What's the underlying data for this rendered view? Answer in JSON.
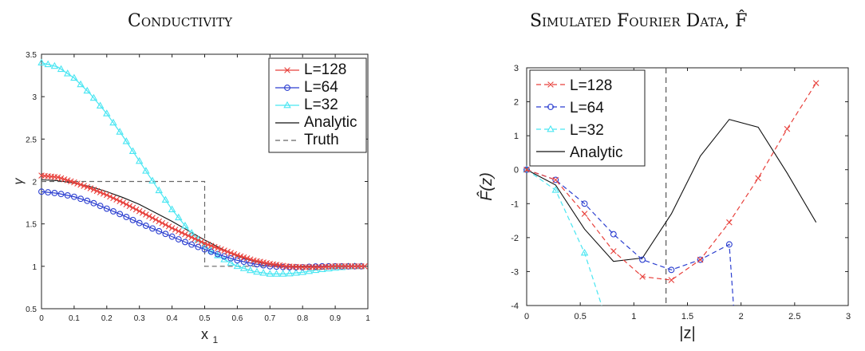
{
  "figure": {
    "left_title": "Conductivity",
    "right_title": "Simulated Fourier Data, F̂"
  },
  "chart_data": [
    {
      "type": "line",
      "title": "Conductivity",
      "xlabel": "x",
      "xlabel_sub": "1",
      "ylabel": "γ",
      "xlim": [
        0,
        1
      ],
      "ylim": [
        0.5,
        3.5
      ],
      "xticks": [
        0,
        0.1,
        0.2,
        0.3,
        0.4,
        0.5,
        0.6,
        0.7,
        0.8,
        0.9,
        1
      ],
      "yticks": [
        0.5,
        1,
        1.5,
        2,
        2.5,
        3,
        3.5
      ],
      "xtick_labels": [
        "0",
        "0.1",
        "0.2",
        "0.3",
        "0.4",
        "0.5",
        "0.6",
        "0.7",
        "0.8",
        "0.9",
        "1"
      ],
      "ytick_labels": [
        "0.5",
        "1",
        "1.5",
        "2",
        "2.5",
        "3",
        "3.5"
      ],
      "legend_position": "top-right",
      "series": [
        {
          "name": "L=128",
          "color": "#e8413c",
          "marker": "x",
          "dash": "solid",
          "marker_step": 0.01,
          "x": [
            0,
            0.05,
            0.1,
            0.15,
            0.2,
            0.25,
            0.3,
            0.35,
            0.4,
            0.45,
            0.5,
            0.55,
            0.6,
            0.65,
            0.7,
            0.75,
            0.8,
            0.85,
            0.9,
            0.95,
            0.99
          ],
          "y": [
            2.07,
            2.05,
            1.99,
            1.92,
            1.84,
            1.75,
            1.65,
            1.55,
            1.45,
            1.36,
            1.27,
            1.2,
            1.13,
            1.07,
            1.03,
            1.0,
            0.99,
            0.99,
            1.0,
            1.0,
            1.0
          ]
        },
        {
          "name": "L=64",
          "color": "#2c3fd0",
          "marker": "o",
          "dash": "solid",
          "marker_step": 0.02,
          "x": [
            0,
            0.05,
            0.1,
            0.15,
            0.2,
            0.25,
            0.3,
            0.35,
            0.4,
            0.45,
            0.5,
            0.55,
            0.6,
            0.65,
            0.7,
            0.75,
            0.8,
            0.85,
            0.9,
            0.95,
            0.99
          ],
          "y": [
            1.88,
            1.86,
            1.82,
            1.76,
            1.68,
            1.6,
            1.51,
            1.43,
            1.35,
            1.27,
            1.2,
            1.13,
            1.07,
            1.03,
            1.0,
            0.99,
            0.99,
            1.0,
            1.0,
            1.0,
            1.0
          ]
        },
        {
          "name": "L=32",
          "color": "#49e6f2",
          "marker": "^",
          "dash": "solid",
          "marker_step": 0.02,
          "x": [
            0,
            0.05,
            0.1,
            0.15,
            0.2,
            0.25,
            0.3,
            0.35,
            0.4,
            0.45,
            0.5,
            0.55,
            0.6,
            0.65,
            0.7,
            0.75,
            0.8,
            0.85,
            0.9,
            0.95,
            0.99
          ],
          "y": [
            3.4,
            3.35,
            3.22,
            3.03,
            2.8,
            2.53,
            2.24,
            1.95,
            1.67,
            1.43,
            1.24,
            1.1,
            1.0,
            0.94,
            0.91,
            0.91,
            0.93,
            0.96,
            0.98,
            1.0,
            1.0
          ]
        },
        {
          "name": "Analytic",
          "color": "#111111",
          "marker": "none",
          "dash": "solid",
          "x": [
            0,
            0.05,
            0.1,
            0.15,
            0.2,
            0.25,
            0.3,
            0.35,
            0.4,
            0.45,
            0.5,
            0.55,
            0.6,
            0.65,
            0.7,
            0.75,
            0.8,
            0.85,
            0.9,
            0.95,
            0.99
          ],
          "y": [
            2.02,
            2.01,
            1.98,
            1.94,
            1.88,
            1.81,
            1.73,
            1.63,
            1.53,
            1.42,
            1.31,
            1.21,
            1.12,
            1.06,
            1.02,
            1.0,
            1.0,
            1.0,
            1.0,
            1.0,
            1.0
          ]
        },
        {
          "name": "Truth",
          "color": "#666666",
          "marker": "none",
          "dash": "dashed",
          "x": [
            0,
            0.5,
            0.5,
            0.99
          ],
          "y": [
            2,
            2,
            1,
            1
          ]
        }
      ]
    },
    {
      "type": "line",
      "title": "Simulated Fourier Data, F̂",
      "xlabel": "|z|",
      "ylabel": "F̂(z)",
      "xlim": [
        0,
        3
      ],
      "ylim": [
        -4,
        3
      ],
      "xticks": [
        0,
        0.5,
        1,
        1.5,
        2,
        2.5,
        3
      ],
      "yticks": [
        -4,
        -3,
        -2,
        -1,
        0,
        1,
        2,
        3
      ],
      "xtick_labels": [
        "0",
        "0.5",
        "1",
        "1.5",
        "2",
        "2.5",
        "3"
      ],
      "ytick_labels": [
        "-4",
        "-3",
        "-2",
        "-1",
        "0",
        "1",
        "2",
        "3"
      ],
      "vline_x": 1.3,
      "legend_position": "top-left",
      "series": [
        {
          "name": "L=128",
          "color": "#e8413c",
          "marker": "x",
          "dash": "dashed",
          "x": [
            0,
            0.27,
            0.54,
            0.81,
            1.08,
            1.35,
            1.62,
            1.89,
            2.16,
            2.43,
            2.7
          ],
          "y": [
            0,
            -0.3,
            -1.3,
            -2.4,
            -3.15,
            -3.25,
            -2.65,
            -1.55,
            -0.25,
            1.2,
            2.55
          ]
        },
        {
          "name": "L=64",
          "color": "#2c3fd0",
          "marker": "o",
          "dash": "dashed",
          "x": [
            0,
            0.27,
            0.54,
            0.81,
            1.08,
            1.35,
            1.62,
            1.89,
            1.93
          ],
          "y": [
            0,
            -0.3,
            -1.0,
            -1.9,
            -2.65,
            -2.95,
            -2.65,
            -2.2,
            -4.0
          ]
        },
        {
          "name": "L=32",
          "color": "#49e6f2",
          "marker": "^",
          "dash": "dashed",
          "x": [
            0,
            0.27,
            0.54,
            0.7
          ],
          "y": [
            0,
            -0.6,
            -2.45,
            -4.0
          ]
        },
        {
          "name": "Analytic",
          "color": "#111111",
          "marker": "none",
          "dash": "solid",
          "x": [
            0,
            0.27,
            0.54,
            0.81,
            1.08,
            1.35,
            1.62,
            1.89,
            2.16,
            2.43,
            2.7
          ],
          "y": [
            0,
            -0.45,
            -1.75,
            -2.7,
            -2.6,
            -1.3,
            0.4,
            1.48,
            1.25,
            -0.1,
            -1.55
          ]
        }
      ]
    }
  ]
}
